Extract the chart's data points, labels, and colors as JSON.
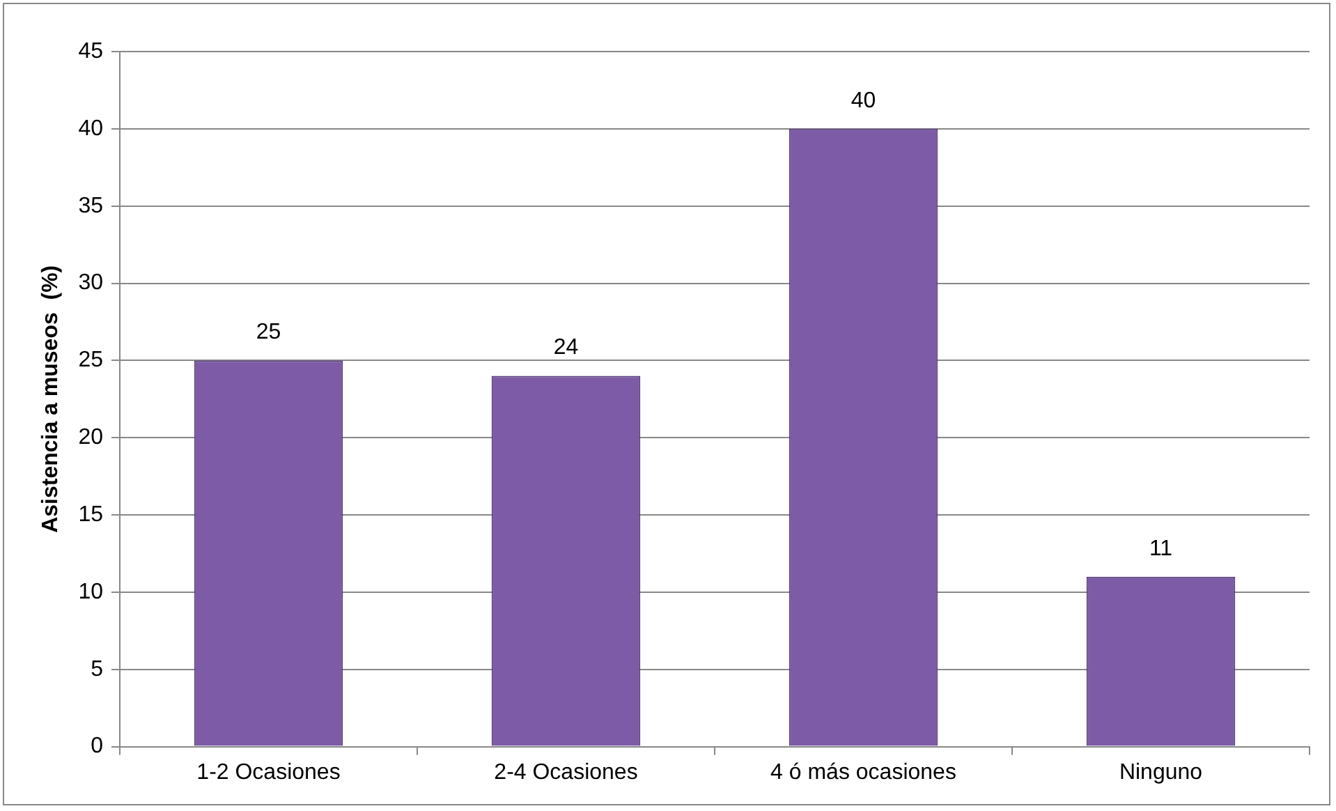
{
  "chart_data": {
    "type": "bar",
    "ylabel": "Asistencia a museos  (%)",
    "categories": [
      "1-2 Ocasiones",
      "2-4 Ocasiones",
      "4 ó más ocasiones",
      "Ninguno"
    ],
    "values": [
      25,
      24,
      40,
      11
    ],
    "color": "#7d5ba6",
    "ylim": [
      0,
      45
    ],
    "yticks": [
      0,
      5,
      10,
      15,
      20,
      25,
      30,
      35,
      40,
      45
    ],
    "grid": "y",
    "data_labels": true
  }
}
